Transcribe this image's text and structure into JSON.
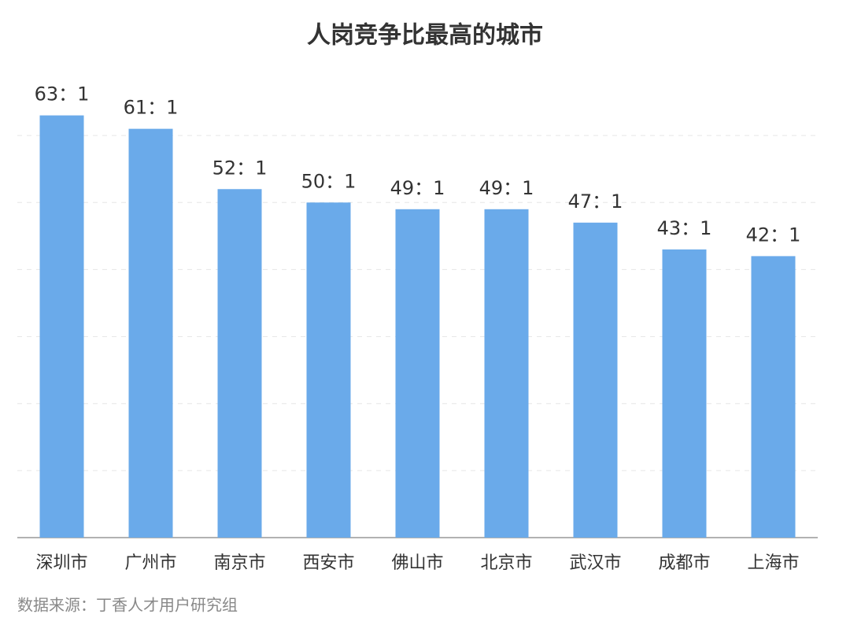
{
  "chart_data": {
    "type": "bar",
    "title": "人岗竞争比最高的城市",
    "categories": [
      "深圳市",
      "广州市",
      "南京市",
      "西安市",
      "佛山市",
      "北京市",
      "武汉市",
      "成都市",
      "上海市"
    ],
    "values": [
      63,
      61,
      52,
      50,
      49,
      49,
      47,
      43,
      42
    ],
    "value_labels": [
      "63：1",
      "61：1",
      "52：1",
      "50：1",
      "49：1",
      "49：1",
      "47：1",
      "43：1",
      "42：1"
    ],
    "color": "#6aaaea",
    "ylim": [
      0,
      70
    ],
    "yticks": [
      0,
      10,
      20,
      30,
      40,
      50,
      60
    ],
    "grid": true,
    "source": "数据来源：丁香人才用户研究组"
  }
}
